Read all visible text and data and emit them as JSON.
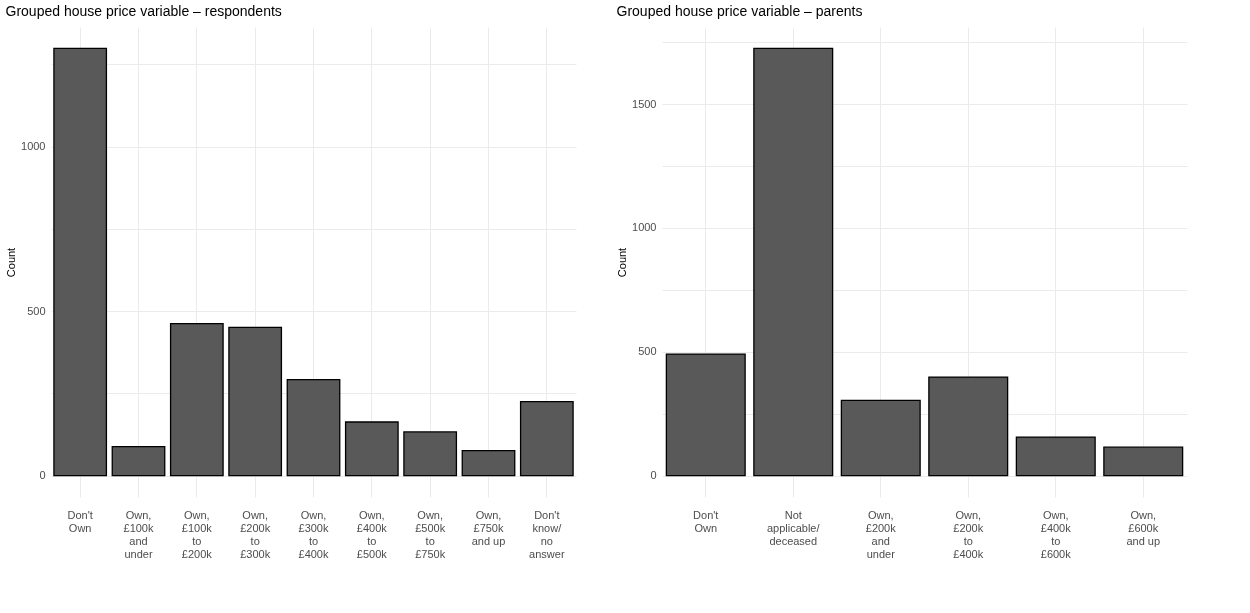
{
  "chart_data": [
    {
      "type": "bar",
      "title": "Grouped house price variable – respondents",
      "ylabel": "Count",
      "categories": [
        "Don't\nOwn",
        "Own,\n£100k\nand\nunder",
        "Own,\n£100k\nto\n£200k",
        "Own,\n£200k\nto\n£300k",
        "Own,\n£300k\nto\n£400k",
        "Own,\n£400k\nto\n£500k",
        "Own,\n£500k\nto\n£750k",
        "Own,\n£750k\nand up",
        "Don't\nknow/\nno\nanswer"
      ],
      "values": [
        1299,
        88,
        462,
        451,
        292,
        163,
        133,
        76,
        225
      ],
      "color": "#595959",
      "ylim": [
        -65,
        1364
      ],
      "yticks": [
        0,
        {
          "value": 250,
          "label": null
        },
        500,
        {
          "value": 750,
          "label": null
        },
        1000,
        {
          "value": 1250,
          "label": null
        }
      ],
      "grid": true
    },
    {
      "type": "bar",
      "title": "Grouped house price variable – parents",
      "ylabel": "Count",
      "categories": [
        "Don't\nOwn",
        "Not\napplicable/\ndeceased",
        "Own,\n£200k\nand\nunder",
        "Own,\n£200k\nto\n£400k",
        "Own,\n£400k\nto\n£600k",
        "Own,\n£600k\nand up"
      ],
      "values": [
        491,
        1725,
        304,
        398,
        156,
        115
      ],
      "color": "#595959",
      "ylim": [
        -86,
        1811
      ],
      "yticks": [
        0,
        {
          "value": 250,
          "label": null
        },
        500,
        {
          "value": 750,
          "label": null
        },
        1000,
        {
          "value": 1250,
          "label": null
        },
        1500,
        {
          "value": 1750,
          "label": null
        }
      ],
      "grid": true
    }
  ]
}
